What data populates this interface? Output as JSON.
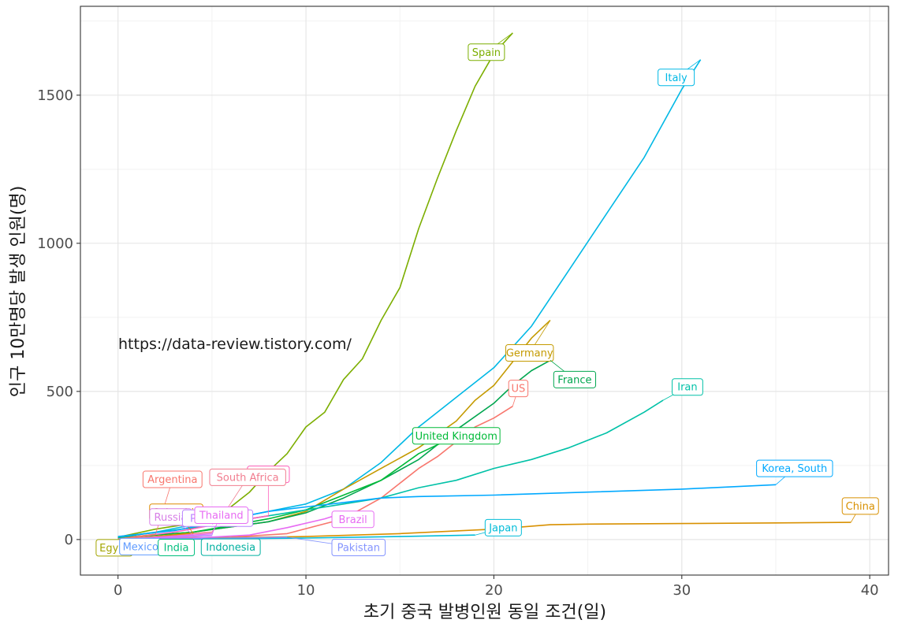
{
  "chart_data": {
    "type": "line",
    "xlabel": "초기 중국 발병인원 동일 조건(일)",
    "ylabel": "인구 10만명당 발생 인원(명)",
    "xlim": [
      -2,
      41
    ],
    "ylim": [
      -120,
      1800
    ],
    "x_ticks": [
      0,
      10,
      20,
      30,
      40
    ],
    "y_ticks": [
      0,
      500,
      1000,
      1500
    ],
    "grid": true,
    "legend": "none",
    "annotation": "https://data-review.tistory.com/",
    "series": [
      {
        "name": "Spain",
        "color": "#7CAE00",
        "x": [
          0,
          2,
          4,
          5,
          6,
          7,
          8,
          9,
          10,
          11,
          12,
          13,
          14,
          15,
          16,
          17,
          18,
          19,
          20,
          21
        ],
        "y": [
          8,
          35,
          55,
          80,
          110,
          160,
          230,
          290,
          380,
          430,
          540,
          610,
          740,
          850,
          1050,
          1220,
          1380,
          1530,
          1640,
          1710
        ]
      },
      {
        "name": "Italy",
        "color": "#00B8E5",
        "x": [
          0,
          2,
          4,
          6,
          8,
          10,
          12,
          14,
          16,
          18,
          20,
          22,
          24,
          26,
          28,
          30,
          31
        ],
        "y": [
          8,
          25,
          50,
          70,
          95,
          120,
          170,
          260,
          380,
          480,
          580,
          720,
          910,
          1100,
          1290,
          1520,
          1620
        ]
      },
      {
        "name": "Germany",
        "color": "#C49A00",
        "x": [
          0,
          4,
          8,
          10,
          12,
          14,
          16,
          18,
          19,
          20,
          21,
          22,
          23
        ],
        "y": [
          6,
          25,
          60,
          95,
          170,
          240,
          310,
          400,
          470,
          520,
          600,
          680,
          740
        ]
      },
      {
        "name": "France",
        "color": "#00A64F",
        "x": [
          0,
          4,
          8,
          10,
          12,
          14,
          16,
          18,
          20,
          21,
          22,
          23
        ],
        "y": [
          6,
          25,
          60,
          90,
          140,
          200,
          270,
          370,
          460,
          520,
          570,
          605
        ]
      },
      {
        "name": "US",
        "color": "#F8766D",
        "x": [
          0,
          6,
          9,
          12,
          14,
          16,
          17,
          18,
          19,
          20,
          21
        ],
        "y": [
          4,
          8,
          20,
          70,
          140,
          240,
          280,
          330,
          380,
          410,
          450
        ]
      },
      {
        "name": "United Kingdom",
        "color": "#00BA38",
        "x": [
          0,
          4,
          8,
          10,
          12,
          14,
          16,
          18
        ],
        "y": [
          5,
          25,
          70,
          100,
          150,
          200,
          290,
          350
        ]
      },
      {
        "name": "Iran",
        "color": "#00C1A7",
        "x": [
          0,
          4,
          8,
          10,
          12,
          14,
          16,
          18,
          20,
          22,
          24,
          26,
          28,
          29
        ],
        "y": [
          8,
          40,
          80,
          100,
          120,
          140,
          175,
          200,
          240,
          270,
          310,
          360,
          430,
          470
        ]
      },
      {
        "name": "Korea, South",
        "color": "#00A9FF",
        "x": [
          0,
          3,
          6,
          8,
          10,
          12,
          14,
          16,
          20,
          25,
          30,
          35
        ],
        "y": [
          10,
          30,
          70,
          95,
          110,
          125,
          140,
          145,
          150,
          160,
          170,
          185
        ]
      },
      {
        "name": "China",
        "color": "#D89000",
        "x": [
          0,
          10,
          15,
          20,
          23,
          25,
          30,
          35,
          39
        ],
        "y": [
          0,
          10,
          20,
          35,
          50,
          52,
          54,
          56,
          58
        ]
      },
      {
        "name": "Japan",
        "color": "#00BCD8",
        "x": [
          0,
          5,
          10,
          15,
          19
        ],
        "y": [
          0,
          2,
          5,
          10,
          15
        ]
      },
      {
        "name": "Brazil",
        "color": "#E76BF3",
        "x": [
          0,
          4,
          7,
          9,
          11,
          12
        ],
        "y": [
          0,
          5,
          15,
          40,
          70,
          90
        ]
      },
      {
        "name": "Turkey",
        "color": "#FF62BC",
        "x": [
          0,
          3,
          6,
          8
        ],
        "y": [
          2,
          25,
          60,
          80
        ]
      },
      {
        "name": "Argentina",
        "color": "#F8766D",
        "x": [
          0,
          1,
          2
        ],
        "y": [
          1,
          10,
          18
        ]
      },
      {
        "name": "South Africa",
        "color": "#F17D8F",
        "x": [
          0,
          3,
          5
        ],
        "y": [
          1,
          15,
          25
        ]
      },
      {
        "name": "Colombia",
        "color": "#DE8C00",
        "x": [
          0,
          2,
          4
        ],
        "y": [
          1,
          10,
          22
        ]
      },
      {
        "name": "Russia",
        "color": "#D77FE6",
        "x": [
          0,
          2,
          4
        ],
        "y": [
          1,
          8,
          16
        ]
      },
      {
        "name": "Philippines",
        "color": "#B983FF",
        "x": [
          0,
          3,
          5
        ],
        "y": [
          1,
          8,
          14
        ]
      },
      {
        "name": "Thailand",
        "color": "#E76BF3",
        "x": [
          0,
          3,
          5
        ],
        "y": [
          1,
          10,
          20
        ]
      },
      {
        "name": "Egypt",
        "color": "#A3A500",
        "x": [
          0,
          1
        ],
        "y": [
          1,
          2
        ]
      },
      {
        "name": "Mexico",
        "color": "#619CFF",
        "x": [
          0,
          2
        ],
        "y": [
          1,
          4
        ]
      },
      {
        "name": "India",
        "color": "#00BF7D",
        "x": [
          0,
          3
        ],
        "y": [
          0,
          1
        ]
      },
      {
        "name": "Indonesia",
        "color": "#00B0A0",
        "x": [
          0,
          5
        ],
        "y": [
          0,
          2
        ]
      },
      {
        "name": "Pakistan",
        "color": "#8494FF",
        "x": [
          0,
          5,
          9
        ],
        "y": [
          0,
          4,
          8
        ]
      }
    ]
  }
}
